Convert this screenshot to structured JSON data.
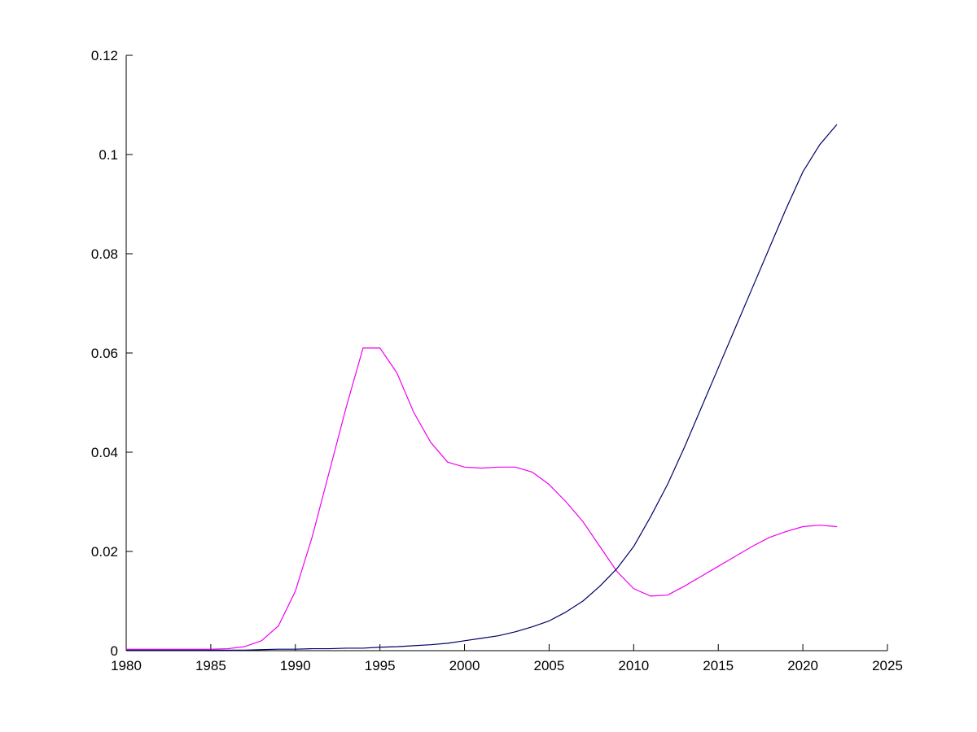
{
  "chart_data": {
    "type": "line",
    "title": "",
    "xlabel": "",
    "ylabel": "",
    "xlim": [
      1980,
      2025
    ],
    "ylim": [
      0,
      0.12
    ],
    "xticks": [
      1980,
      1985,
      1990,
      1995,
      2000,
      2005,
      2010,
      2015,
      2020,
      2025
    ],
    "xtick_labels": [
      "1980",
      "1985",
      "1990",
      "1995",
      "2000",
      "2005",
      "2010",
      "2015",
      "2020",
      "2025"
    ],
    "yticks": [
      0,
      0.02,
      0.04,
      0.06,
      0.08,
      0.1,
      0.12
    ],
    "ytick_labels": [
      "0",
      "0.02",
      "0.04",
      "0.06",
      "0.08",
      "0.1",
      "0.12"
    ],
    "grid": false,
    "legend": null,
    "axis_color": "#000000",
    "background_color": "#ffffff",
    "x": [
      1980,
      1981,
      1982,
      1983,
      1984,
      1985,
      1986,
      1987,
      1988,
      1989,
      1990,
      1991,
      1992,
      1993,
      1994,
      1995,
      1996,
      1997,
      1998,
      1999,
      2000,
      2001,
      2002,
      2003,
      2004,
      2005,
      2006,
      2007,
      2008,
      2009,
      2010,
      2011,
      2012,
      2013,
      2014,
      2015,
      2016,
      2017,
      2018,
      2019,
      2020,
      2021,
      2022
    ],
    "series": [
      {
        "name": "magenta-series",
        "color": "#f000f0",
        "values": [
          0.0003,
          0.0003,
          0.0003,
          0.0003,
          0.0003,
          0.0003,
          0.0004,
          0.0008,
          0.002,
          0.005,
          0.012,
          0.023,
          0.036,
          0.049,
          0.061,
          0.061,
          0.056,
          0.048,
          0.042,
          0.038,
          0.037,
          0.0368,
          0.037,
          0.037,
          0.036,
          0.0335,
          0.03,
          0.026,
          0.021,
          0.016,
          0.0125,
          0.011,
          0.0112,
          0.013,
          0.015,
          0.017,
          0.019,
          0.021,
          0.0228,
          0.024,
          0.025,
          0.0253,
          0.025
        ]
      },
      {
        "name": "dark-blue-series",
        "color": "#000066",
        "values": [
          0.0001,
          0.0001,
          0.0001,
          0.0001,
          0.0001,
          0.0001,
          0.0001,
          0.0001,
          0.0002,
          0.0003,
          0.0003,
          0.0004,
          0.0004,
          0.0005,
          0.0005,
          0.0007,
          0.0008,
          0.001,
          0.0012,
          0.0015,
          0.002,
          0.0025,
          0.003,
          0.0038,
          0.0048,
          0.006,
          0.0078,
          0.01,
          0.013,
          0.0165,
          0.021,
          0.027,
          0.0335,
          0.041,
          0.049,
          0.057,
          0.065,
          0.073,
          0.081,
          0.089,
          0.0965,
          0.102,
          0.106
        ]
      }
    ]
  }
}
